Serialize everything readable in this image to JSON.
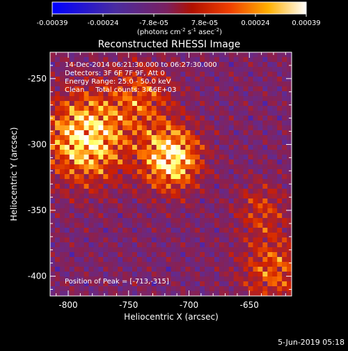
{
  "colorbar": {
    "ticks": [
      "-0.00039",
      "-0.00024",
      "-7.8e-05",
      "7.8e-05",
      "0.00024",
      "0.00039"
    ],
    "units_main": "(photons cm",
    "units_exp1": "-2",
    "units_mid": " s",
    "units_exp2": "-1",
    "units_end": " asec",
    "units_exp3": "-2",
    "units_close": ")",
    "min": -0.00039,
    "max": 0.00039
  },
  "chart_data": {
    "type": "heatmap",
    "title": "Reconstructed RHESSI Image",
    "xlabel": "Heliocentric X (arcsec)",
    "ylabel": "Heliocentric Y (arcsec)",
    "xlim": [
      -815,
      -615
    ],
    "ylim": [
      -415,
      -230
    ],
    "xticks": [
      "-800",
      "-750",
      "-700",
      "-650"
    ],
    "xtick_values": [
      -800,
      -750,
      -700,
      -650
    ],
    "yticks": [
      "-250",
      "-300",
      "-350",
      "-400"
    ],
    "ytick_values": [
      -250,
      -300,
      -350,
      -400
    ],
    "colormap": [
      "#0000ff",
      "#5b2c9a",
      "#8a2050",
      "#d02000",
      "#ff7800",
      "#ffff60",
      "#ffffff"
    ],
    "peak": {
      "x": -713,
      "y": -315
    },
    "annotations": {
      "time": "14-Dec-2014 06:21:30.000 to 06:27:30.000",
      "detectors": "Detectors: 3F 6F 7F 9F, Att 0",
      "energy": "Energy Range: 25.0 - 50.0 keV",
      "clean": "Clean     Total counts: 3.66E+03",
      "peak_label": "Position of Peak = [-713,-315]"
    },
    "sources": [
      {
        "x": -785,
        "y": -295,
        "amp": 1.0,
        "sigma": 22
      },
      {
        "x": -715,
        "y": -310,
        "amp": 1.05,
        "sigma": 16
      },
      {
        "x": -740,
        "y": -265,
        "amp": 0.45,
        "sigma": 18
      },
      {
        "x": -630,
        "y": -395,
        "amp": 0.5,
        "sigma": 18
      },
      {
        "x": -640,
        "y": -350,
        "amp": 0.35,
        "sigma": 14
      }
    ]
  },
  "footer": {
    "date": "5-Jun-2019 05:18"
  }
}
